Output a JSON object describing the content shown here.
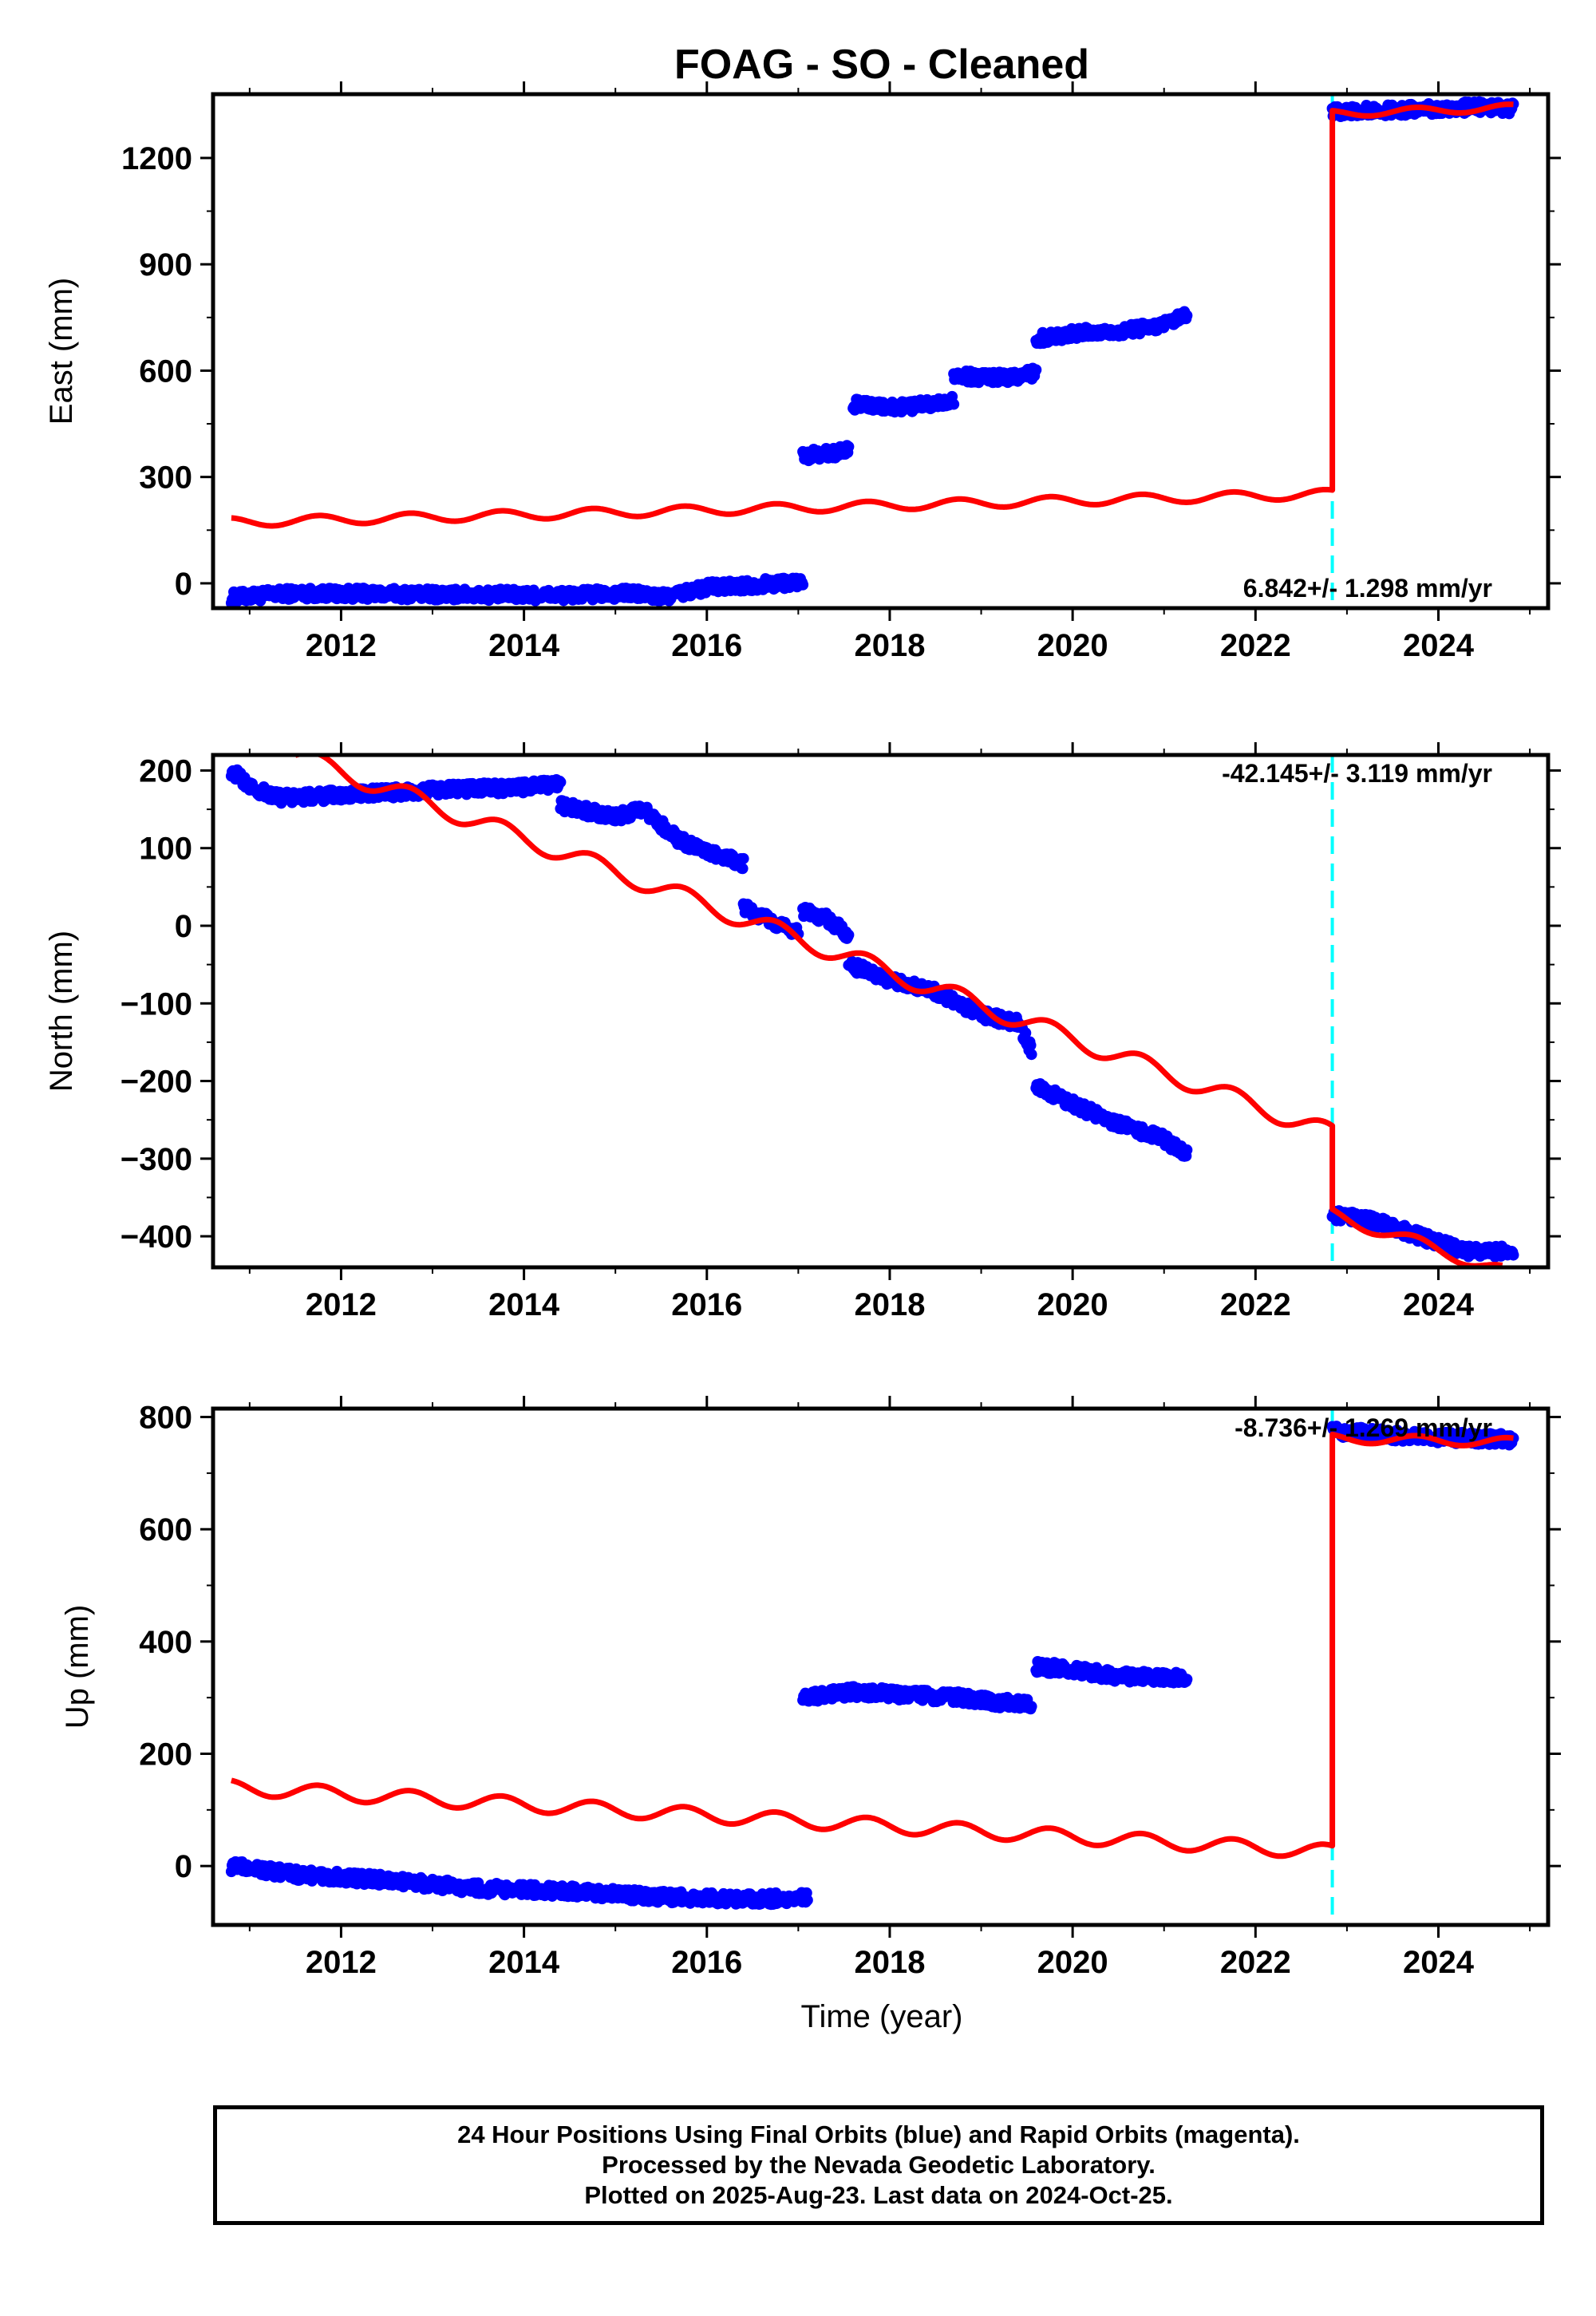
{
  "title": "FOAG  - SO - Cleaned",
  "xlabel": "Time (year)",
  "caption": {
    "line1": "24 Hour Positions Using Final Orbits (blue) and Rapid Orbits (magenta).",
    "line2": "Processed by the Nevada Geodetic Laboratory.",
    "line3": "Plotted on 2025-Aug-23. Last data on 2024-Oct-25."
  },
  "colors": {
    "data": "#0000ff",
    "model": "#ff0000",
    "break": "#00ffff"
  },
  "chart_data": [
    {
      "type": "scatter",
      "ylabel": "East (mm)",
      "rate_text": "6.842+/- 1.298 mm/yr",
      "xlim": [
        2010.6,
        2025.2
      ],
      "ylim": [
        -70,
        1380
      ],
      "x_ticks": [
        2012,
        2014,
        2016,
        2018,
        2020,
        2022,
        2024
      ],
      "y_ticks": [
        0,
        300,
        600,
        900,
        1200
      ],
      "y_tick_labels": [
        "0",
        "300",
        "600",
        "900",
        "1200"
      ],
      "equipment_change": 2022.84,
      "series": [
        {
          "kind": "data",
          "segments": [
            {
              "x": [
                2010.8,
                2011.5,
                2012.5,
                2013.5,
                2014.5,
                2015.2,
                2015.5,
                2016.0,
                2016.5,
                2017.05
              ],
              "y": [
                -40,
                -28,
                -30,
                -32,
                -34,
                -28,
                -40,
                -12,
                -5,
                5
              ]
            },
            {
              "x": [
                2017.05,
                2017.4,
                2017.55
              ],
              "y": [
                360,
                368,
                375
              ]
            },
            {
              "x": [
                2017.6,
                2018.0,
                2018.5,
                2018.7
              ],
              "y": [
                505,
                495,
                505,
                520
              ]
            },
            {
              "x": [
                2018.7,
                2019.2,
                2019.6
              ],
              "y": [
                585,
                580,
                592
              ]
            },
            {
              "x": [
                2019.6,
                2020.0,
                2020.5,
                2021.0,
                2021.25
              ],
              "y": [
                690,
                705,
                710,
                728,
                755
              ]
            },
            {
              "x": [
                2022.84,
                2023.5,
                2024.0,
                2024.5,
                2024.82
              ],
              "y": [
                1330,
                1335,
                1340,
                1343,
                1340
              ]
            }
          ]
        },
        {
          "kind": "model",
          "segments": [
            {
              "x": [
                2010.8,
                2022.84
              ],
              "y": [
                172,
                252
              ],
              "amp": 13
            },
            {
              "x": [
                2022.84,
                2024.82
              ],
              "y": [
                1325,
                1342
              ],
              "amp": 10
            }
          ]
        }
      ]
    },
    {
      "type": "scatter",
      "ylabel": "North (mm)",
      "rate_text": "-42.145+/- 3.119 mm/yr",
      "xlim": [
        2010.6,
        2025.2
      ],
      "ylim": [
        -440,
        220
      ],
      "x_ticks": [
        2012,
        2014,
        2016,
        2018,
        2020,
        2022,
        2024
      ],
      "y_ticks": [
        -400,
        -300,
        -200,
        -100,
        0,
        100,
        200
      ],
      "y_tick_labels": [
        "−400",
        "−300",
        "−200",
        "−100",
        "0",
        "100",
        "200"
      ],
      "equipment_change": 2022.84,
      "series": [
        {
          "kind": "data",
          "segments": [
            {
              "x": [
                2010.8,
                2011.0,
                2011.3,
                2012.0,
                2013.0,
                2014.0,
                2014.4
              ],
              "y": [
                200,
                180,
                165,
                168,
                175,
                178,
                183
              ]
            },
            {
              "x": [
                2014.4,
                2015.0,
                2015.3,
                2015.7,
                2016.0,
                2016.4
              ],
              "y": [
                155,
                140,
                150,
                110,
                95,
                80
              ]
            },
            {
              "x": [
                2016.4,
                2016.7,
                2017.0
              ],
              "y": [
                25,
                5,
                -8
              ]
            },
            {
              "x": [
                2017.05,
                2017.3,
                2017.55
              ],
              "y": [
                18,
                10,
                -12
              ]
            },
            {
              "x": [
                2017.55,
                2018.0,
                2018.5,
                2019.0,
                2019.4,
                2019.55
              ],
              "y": [
                -50,
                -70,
                -85,
                -115,
                -125,
                -160
              ]
            },
            {
              "x": [
                2019.6,
                2020.0,
                2020.5,
                2021.0,
                2021.25
              ],
              "y": [
                -205,
                -230,
                -255,
                -275,
                -295
              ]
            },
            {
              "x": [
                2022.84,
                2023.3,
                2023.8,
                2024.3,
                2024.82
              ],
              "y": [
                -372,
                -380,
                -400,
                -420,
                -420
              ]
            }
          ]
        },
        {
          "kind": "model",
          "segments": [
            {
              "x": [
                2011.5,
                2022.84
              ],
              "y": [
                220,
                -268
              ],
              "amp": 12
            },
            {
              "x": [
                2022.84,
                2024.7
              ],
              "y": [
                -372,
                -445
              ],
              "amp": 8
            }
          ]
        }
      ]
    },
    {
      "type": "scatter",
      "ylabel": "Up (mm)",
      "rate_text": "-8.736+/- 1.269 mm/yr",
      "xlim": [
        2010.6,
        2025.2
      ],
      "ylim": [
        -105,
        815
      ],
      "x_ticks": [
        2012,
        2014,
        2016,
        2018,
        2020,
        2022,
        2024
      ],
      "y_ticks": [
        0,
        200,
        400,
        600,
        800
      ],
      "y_tick_labels": [
        "0",
        "200",
        "400",
        "600",
        "800"
      ],
      "equipment_change": 2022.84,
      "series": [
        {
          "kind": "data",
          "segments": [
            {
              "x": [
                2010.8,
                2011.5,
                2012.5,
                2013.5,
                2014.5,
                2015.5,
                2016.5,
                2017.1
              ],
              "y": [
                0,
                -15,
                -25,
                -40,
                -45,
                -55,
                -60,
                -55
              ]
            },
            {
              "x": [
                2017.05,
                2017.6,
                2018.2,
                2018.8,
                2019.3,
                2019.55
              ],
              "y": [
                300,
                310,
                305,
                300,
                290,
                290
              ]
            },
            {
              "x": [
                2019.6,
                2020.0,
                2020.5,
                2021.25
              ],
              "y": [
                355,
                350,
                338,
                335
              ]
            },
            {
              "x": [
                2022.84,
                2023.3,
                2023.8,
                2024.3,
                2024.82
              ],
              "y": [
                775,
                770,
                765,
                762,
                760
              ]
            }
          ]
        },
        {
          "kind": "model",
          "segments": [
            {
              "x": [
                2010.8,
                2022.84
              ],
              "y": [
                140,
                25
              ],
              "amp": 13
            },
            {
              "x": [
                2022.84,
                2024.82
              ],
              "y": [
                762,
                755
              ],
              "amp": 8
            }
          ]
        }
      ]
    }
  ]
}
